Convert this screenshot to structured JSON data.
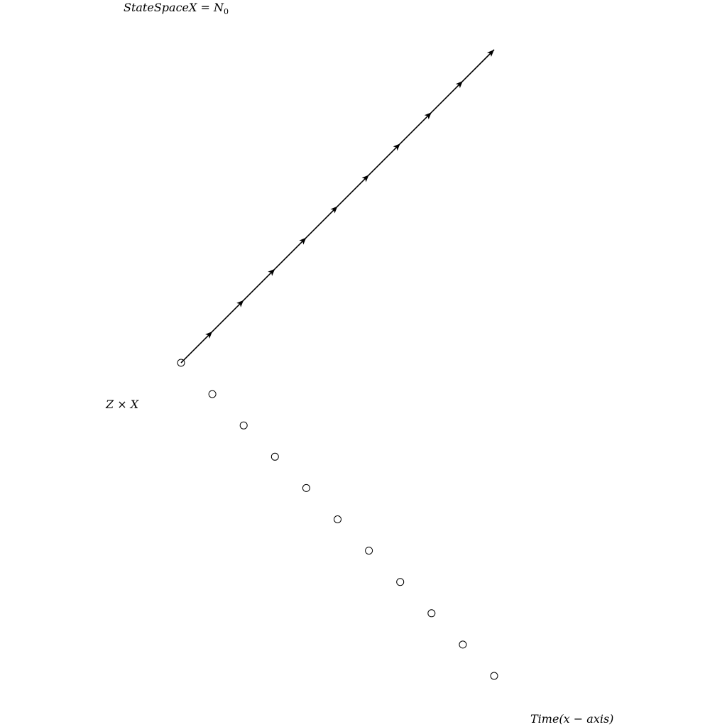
{
  "labels": {
    "state_space": "StateSpaceX = N",
    "state_space_sub": "0",
    "product": "Z × X",
    "time_axis": "Time(x − axis)"
  },
  "diagram": {
    "orbit_count": 11,
    "arrow_steps": 10,
    "colors": {
      "stroke": "#000000",
      "background": "#ffffff"
    }
  }
}
